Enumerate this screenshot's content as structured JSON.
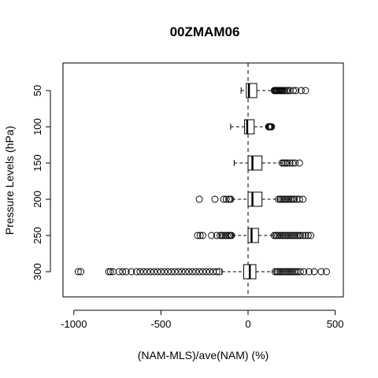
{
  "chart_data": {
    "type": "boxplot",
    "orientation": "horizontal",
    "title": "00ZMAM06",
    "xlabel": "(NAM-MLS)/ave(NAM) (%)",
    "ylabel": "Pressure Levels (hPa)",
    "xlim": [
      -1050,
      550
    ],
    "x_ticks": [
      -1000,
      -500,
      0,
      500
    ],
    "x_tick_labels": [
      "-1000",
      "-500",
      "0",
      "500"
    ],
    "reference_line_x": 0,
    "reference_line_style": "dashed",
    "categories": [
      "50",
      "100",
      "150",
      "200",
      "250",
      "300"
    ],
    "boxes": [
      {
        "level": "50",
        "whisker_low": -40,
        "q1": -10,
        "median": 5,
        "q3": 50,
        "whisker_high": 145,
        "outliers": [
          150,
          155,
          160,
          165,
          170,
          175,
          180,
          185,
          190,
          195,
          200,
          210,
          220,
          230,
          240,
          260,
          275,
          305,
          330
        ]
      },
      {
        "level": "100",
        "whisker_low": -100,
        "q1": -20,
        "median": -5,
        "q3": 35,
        "whisker_high": 110,
        "outliers": [
          118,
          122,
          126,
          130,
          135
        ]
      },
      {
        "level": "150",
        "whisker_low": -80,
        "q1": 0,
        "median": 25,
        "q3": 80,
        "whisker_high": 190,
        "outliers": [
          195,
          205,
          215,
          225,
          240,
          255,
          270,
          295
        ]
      },
      {
        "level": "200",
        "whisker_low": -90,
        "q1": 0,
        "median": 25,
        "q3": 80,
        "whisker_high": 170,
        "outliers": [
          -280,
          -190,
          -140,
          -125,
          -110,
          -100,
          175,
          185,
          195,
          205,
          215,
          225,
          235,
          245,
          255,
          265,
          280,
          295,
          315
        ]
      },
      {
        "level": "250",
        "whisker_low": -90,
        "q1": 0,
        "median": 20,
        "q3": 60,
        "whisker_high": 145,
        "outliers": [
          -290,
          -275,
          -260,
          -210,
          -180,
          -160,
          -150,
          -140,
          -130,
          -120,
          -110,
          -100,
          -95,
          150,
          160,
          170,
          180,
          190,
          200,
          210,
          220,
          230,
          240,
          250,
          260,
          270,
          280,
          290,
          300,
          315,
          330,
          345,
          360
        ]
      },
      {
        "level": "300",
        "whisker_low": -150,
        "q1": -25,
        "median": 10,
        "q3": 45,
        "whisker_high": 150,
        "outliers": [
          -975,
          -960,
          -800,
          -790,
          -775,
          -740,
          -720,
          -700,
          -670,
          -640,
          -620,
          -600,
          -580,
          -560,
          -540,
          -520,
          -500,
          -480,
          -460,
          -440,
          -420,
          -400,
          -380,
          -360,
          -340,
          -320,
          -300,
          -280,
          -260,
          -240,
          -220,
          -200,
          -180,
          -165,
          155,
          165,
          175,
          185,
          195,
          205,
          215,
          225,
          235,
          245,
          255,
          265,
          275,
          285,
          300,
          320,
          350,
          380,
          420,
          450
        ]
      }
    ]
  }
}
